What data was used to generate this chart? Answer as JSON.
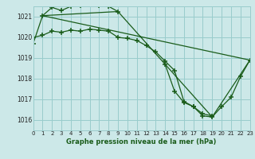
{
  "title": "Graphe pression niveau de la mer (hPa)",
  "bg_color": "#cce8e8",
  "grid_color": "#99cccc",
  "line_color": "#1a5c1a",
  "xlim": [
    0,
    23
  ],
  "ylim": [
    1015.5,
    1021.5
  ],
  "yticks": [
    1016,
    1017,
    1018,
    1019,
    1020,
    1021
  ],
  "xticks": [
    0,
    1,
    2,
    3,
    4,
    5,
    6,
    7,
    8,
    9,
    10,
    11,
    12,
    13,
    14,
    15,
    16,
    17,
    18,
    19,
    20,
    21,
    22,
    23
  ],
  "series": [
    {
      "x": [
        0,
        1,
        2,
        3,
        4,
        5,
        6,
        7,
        8,
        9
      ],
      "y": [
        1019.7,
        1021.05,
        1021.45,
        1021.3,
        1021.5,
        1021.55,
        1021.6,
        1021.55,
        1021.5,
        1021.25
      ]
    },
    {
      "x": [
        0,
        1,
        2,
        3,
        4,
        5,
        6,
        7,
        8,
        9,
        10,
        11,
        12,
        13,
        14,
        15,
        16,
        17,
        18,
        19
      ],
      "y": [
        1020.0,
        1020.1,
        1020.3,
        1020.25,
        1020.35,
        1020.3,
        1020.4,
        1020.35,
        1020.3,
        1020.0,
        1019.95,
        1019.85,
        1019.6,
        1019.3,
        1018.85,
        1018.4,
        1016.9,
        1016.65,
        1016.3,
        1016.2
      ]
    },
    {
      "x": [
        14,
        15,
        16,
        17,
        18,
        19,
        20,
        21,
        22,
        23
      ],
      "y": [
        1018.7,
        1017.4,
        1016.85,
        1016.65,
        1016.2,
        1016.15,
        1016.65,
        1017.1,
        1018.1,
        1018.9
      ]
    },
    {
      "x": [
        1,
        9,
        19,
        23,
        1
      ],
      "y": [
        1021.05,
        1021.25,
        1016.15,
        1018.9,
        1021.05
      ]
    }
  ]
}
